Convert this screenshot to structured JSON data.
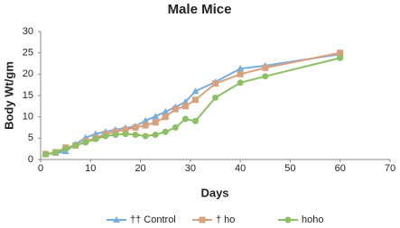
{
  "chart_data": {
    "type": "line",
    "title": "Male Mice",
    "x_label": "Days",
    "y_label": "Body  Wt/gm",
    "x": [
      1,
      3,
      5,
      7,
      9,
      11,
      13,
      15,
      17,
      19,
      21,
      23,
      25,
      27,
      29,
      31,
      35,
      40,
      45,
      60
    ],
    "series": [
      {
        "name": "†† Control",
        "color": "#74aee0",
        "marker": "triangle",
        "values": [
          1.2,
          1.5,
          1.9,
          3.6,
          5.1,
          6,
          6.5,
          7,
          7.4,
          7.8,
          9.1,
          10.1,
          11.2,
          12.3,
          13.5,
          16,
          18.2,
          21.3,
          22,
          24.7
        ]
      },
      {
        "name": "† ho",
        "color": "#d9a07c",
        "marker": "square",
        "values": [
          1.3,
          1.7,
          2.8,
          3.3,
          4.3,
          5,
          6,
          6.5,
          7,
          7.5,
          8,
          8.7,
          10,
          11.8,
          12.5,
          14,
          17.8,
          20,
          21.5,
          25
        ]
      },
      {
        "name": "hoho",
        "color": "#8cc063",
        "marker": "circle",
        "values": [
          1.2,
          1.7,
          2.5,
          3.3,
          4,
          4.8,
          5.5,
          5.8,
          6,
          5.8,
          5.5,
          5.8,
          6.5,
          7.5,
          9.5,
          9,
          14.5,
          18,
          19.5,
          23.8
        ]
      }
    ],
    "xlim": [
      0,
      70
    ],
    "xticks": [
      0,
      10,
      20,
      30,
      40,
      50,
      60,
      70
    ],
    "ylim": [
      0,
      30
    ],
    "yticks": [
      0,
      5,
      10,
      15,
      20,
      25,
      30
    ],
    "grid": false,
    "legend": "bottom"
  }
}
